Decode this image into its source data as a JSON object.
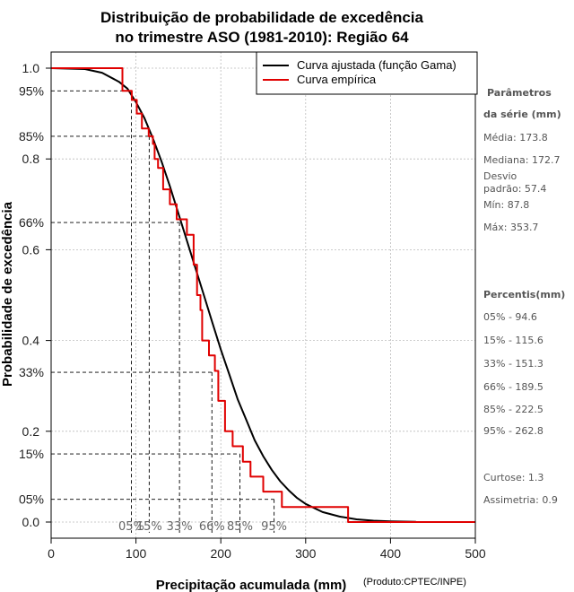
{
  "chart_data": {
    "type": "line",
    "title_line1": "Distribuição de probabilidade de excedência",
    "title_line2": "no trimestre ASO (1981-2010): Região 64",
    "xlabel": "Precipitação acumulada (mm)",
    "ylabel": "Probabilidade de excedência",
    "credit": "(Produto:CPTEC/INPE)",
    "xlim": [
      0,
      500
    ],
    "ylim": [
      0,
      1
    ],
    "x_ticks": [
      "0",
      "100",
      "200",
      "300",
      "400",
      "500"
    ],
    "x_tick_values": [
      0,
      100,
      200,
      300,
      400,
      500
    ],
    "y_ticks": [
      "0.0",
      "0.2",
      "0.4",
      "0.6",
      "0.8",
      "1.0"
    ],
    "y_tick_values": [
      0.0,
      0.2,
      0.4,
      0.6,
      0.8,
      1.0
    ],
    "y_pct_ticks": [
      "05%",
      "15%",
      "33%",
      "66%",
      "85%",
      "95%"
    ],
    "y_pct_values": [
      0.05,
      0.15,
      0.33,
      0.66,
      0.85,
      0.95
    ],
    "percentile_labels": [
      "05%",
      "15%",
      "33%",
      "66%",
      "85%",
      "95%"
    ],
    "percentile_x": [
      94.6,
      115.6,
      151.3,
      189.5,
      222.5,
      262.8
    ],
    "series": [
      {
        "name": "Curva ajustada (função Gama)",
        "color": "#000000",
        "x": [
          0,
          40,
          60,
          80,
          90,
          100,
          110,
          120,
          130,
          140,
          150,
          160,
          170,
          180,
          190,
          200,
          210,
          220,
          230,
          240,
          250,
          260,
          270,
          280,
          290,
          300,
          320,
          340,
          360,
          380,
          400,
          430
        ],
        "y": [
          1.0,
          0.998,
          0.99,
          0.97,
          0.955,
          0.925,
          0.89,
          0.845,
          0.795,
          0.74,
          0.68,
          0.62,
          0.56,
          0.5,
          0.44,
          0.38,
          0.325,
          0.27,
          0.225,
          0.18,
          0.145,
          0.115,
          0.09,
          0.07,
          0.053,
          0.04,
          0.022,
          0.012,
          0.006,
          0.003,
          0.0015,
          0.0005
        ]
      },
      {
        "name": "Curva empírica",
        "color": "#e00000",
        "x": [
          0,
          84,
          84,
          95,
          95,
          101,
          101,
          107,
          107,
          115,
          115,
          120,
          120,
          122,
          122,
          126,
          126,
          132,
          132,
          140,
          140,
          148,
          148,
          160,
          160,
          168,
          168,
          172,
          172,
          176,
          176,
          178,
          178,
          186,
          186,
          193,
          193,
          197,
          197,
          205,
          205,
          214,
          214,
          226,
          226,
          235,
          235,
          250,
          250,
          272,
          272,
          292,
          292,
          320,
          320,
          350,
          350,
          354,
          354,
          500
        ],
        "y": [
          1.0,
          1.0,
          0.95,
          0.95,
          0.93,
          0.93,
          0.9,
          0.9,
          0.867,
          0.867,
          0.85,
          0.85,
          0.833,
          0.833,
          0.8,
          0.8,
          0.78,
          0.78,
          0.733,
          0.733,
          0.7,
          0.7,
          0.667,
          0.667,
          0.633,
          0.633,
          0.567,
          0.567,
          0.5,
          0.5,
          0.467,
          0.467,
          0.4,
          0.4,
          0.367,
          0.367,
          0.333,
          0.333,
          0.267,
          0.267,
          0.2,
          0.2,
          0.167,
          0.167,
          0.133,
          0.133,
          0.1,
          0.1,
          0.067,
          0.067,
          0.033,
          0.033,
          0.033,
          0.033,
          0.033,
          0.033,
          0.0,
          0.0,
          0.0,
          0.0
        ]
      }
    ],
    "legend": {
      "placement": "top-right",
      "entries": [
        "Curva ajustada (função Gama)",
        "Curva empírica"
      ]
    }
  },
  "side_panel": {
    "params_heading_1": "Parâmetros",
    "params_heading_2": "da série (mm)",
    "media": "Média: 173.8",
    "mediana": "Mediana: 172.7",
    "desvio_1": "Desvio",
    "desvio_2": "padrão: 57.4",
    "min": "Mín: 87.8",
    "max": "Máx: 353.7",
    "percentis_heading": "Percentis(mm)",
    "p05": "05% - 94.6",
    "p15": "15% - 115.6",
    "p33": "33% - 151.3",
    "p66": "66% - 189.5",
    "p85": "85% - 222.5",
    "p95": "95% - 262.8",
    "curtose": "Curtose: 1.3",
    "assimetria": "Assimetria: 0.9"
  }
}
